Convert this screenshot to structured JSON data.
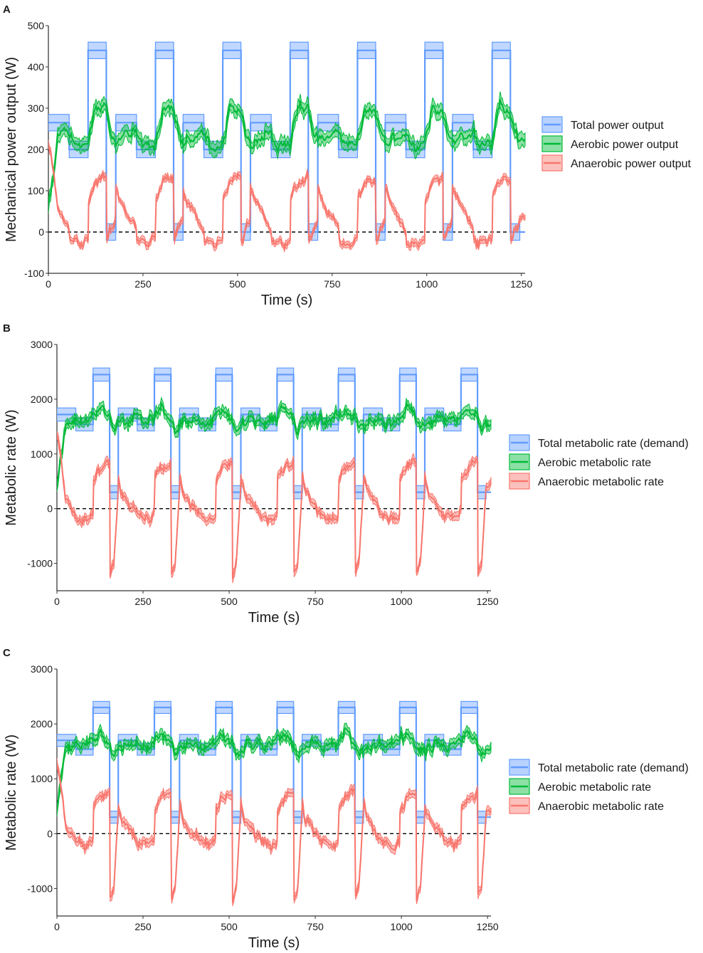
{
  "figure": {
    "panel_letters": [
      "A",
      "B",
      "C"
    ]
  },
  "colors": {
    "total": "#619CFF",
    "aerobic": "#00BA38",
    "anaerobic": "#F8766D",
    "zero_line": "#000000"
  },
  "chart_data": [
    {
      "panel": "A",
      "type": "line",
      "title": "",
      "xlabel": "Time (s)",
      "ylabel": "Mechanical power output (W)",
      "xlim": [
        0,
        1260
      ],
      "ylim": [
        -100,
        500
      ],
      "xticks": [
        0,
        250,
        500,
        750,
        1000,
        1250
      ],
      "yticks": [
        -100,
        0,
        100,
        200,
        300,
        400,
        500
      ],
      "reference_line": {
        "y": 0,
        "style": "dashed"
      },
      "legend_position": "right",
      "legend": [
        "Total power output",
        "Aerobic power output",
        "Anaerobic power output"
      ],
      "cycle": {
        "period_s": 178,
        "count": 7
      },
      "series": [
        {
          "name": "Total power output",
          "key": "total",
          "profile_s": [
            0,
            55,
            55,
            105,
            105,
            153,
            153,
            178
          ],
          "profile_y": [
            265,
            265,
            200,
            200,
            440,
            440,
            0,
            0
          ],
          "band_half_width": 20,
          "final_point": [
            1260,
            0
          ]
        },
        {
          "name": "Aerobic power output",
          "key": "aerobic",
          "start_point": [
            0,
            60
          ],
          "knots_s": [
            0,
            20,
            55,
            70,
            105,
            125,
            153,
            165,
            178
          ],
          "knots_y": [
            210,
            230,
            240,
            205,
            215,
            305,
            295,
            240,
            220
          ],
          "band_half_width": 20
        },
        {
          "name": "Anaerobic power output",
          "key": "anaerobic",
          "start_point": [
            0,
            220
          ],
          "knots_s": [
            0,
            10,
            55,
            56,
            90,
            105,
            106,
            125,
            153,
            154,
            178
          ],
          "knots_y": [
            110,
            80,
            5,
            -20,
            -30,
            -15,
            80,
            120,
            130,
            -20,
            30
          ],
          "band_half_width": 10
        }
      ]
    },
    {
      "panel": "B",
      "type": "line",
      "title": "",
      "xlabel": "Time (s)",
      "ylabel": "Metabolic rate (W)",
      "xlim": [
        0,
        1260
      ],
      "ylim": [
        -1500,
        3000
      ],
      "xticks": [
        0,
        250,
        500,
        750,
        1000,
        1250
      ],
      "yticks": [
        -1000,
        0,
        1000,
        2000,
        3000
      ],
      "reference_line": {
        "y": 0,
        "style": "dashed"
      },
      "legend_position": "right",
      "legend": [
        "Total metabolic rate (demand)",
        "Aerobic metabolic rate",
        "Anaerobic metabolic rate"
      ],
      "cycle": {
        "period_s": 178,
        "count": 7
      },
      "series": [
        {
          "name": "Total metabolic rate (demand)",
          "key": "total",
          "profile_s": [
            0,
            55,
            55,
            105,
            105,
            153,
            153,
            178
          ],
          "profile_y": [
            1720,
            1720,
            1540,
            1540,
            2450,
            2450,
            300,
            300
          ],
          "band_half_width": 120,
          "final_point": [
            1260,
            300
          ]
        },
        {
          "name": "Aerobic metabolic rate",
          "key": "aerobic",
          "start_point": [
            0,
            380
          ],
          "knots_s": [
            0,
            20,
            55,
            70,
            105,
            125,
            153,
            165,
            178
          ],
          "knots_y": [
            1550,
            1600,
            1650,
            1550,
            1700,
            1850,
            1650,
            1400,
            1550
          ],
          "band_half_width": 110
        },
        {
          "name": "Anaerobic metabolic rate",
          "key": "anaerobic",
          "start_point": [
            0,
            1400
          ],
          "knots_s": [
            0,
            10,
            55,
            56,
            90,
            105,
            106,
            125,
            153,
            154,
            165,
            178
          ],
          "knots_y": [
            600,
            300,
            -100,
            -150,
            -200,
            -100,
            550,
            750,
            850,
            -1200,
            -1000,
            400
          ],
          "band_half_width": 90
        }
      ]
    },
    {
      "panel": "C",
      "type": "line",
      "title": "",
      "xlabel": "Time (s)",
      "ylabel": "Metabolic rate (W)",
      "xlim": [
        0,
        1260
      ],
      "ylim": [
        -1500,
        3000
      ],
      "xticks": [
        0,
        250,
        500,
        750,
        1000,
        1250
      ],
      "yticks": [
        -1000,
        0,
        1000,
        2000,
        3000
      ],
      "reference_line": {
        "y": 0,
        "style": "dashed"
      },
      "legend_position": "right",
      "legend": [
        "Total metabolic rate (demand)",
        "Aerobic metabolic rate",
        "Anaerobic metabolic rate"
      ],
      "cycle": {
        "period_s": 178,
        "count": 7
      },
      "series": [
        {
          "name": "Total metabolic rate (demand)",
          "key": "total",
          "profile_s": [
            0,
            55,
            55,
            105,
            105,
            153,
            153,
            178
          ],
          "profile_y": [
            1700,
            1700,
            1540,
            1540,
            2300,
            2300,
            300,
            300
          ],
          "band_half_width": 110,
          "final_point": [
            1260,
            300
          ]
        },
        {
          "name": "Aerobic metabolic rate",
          "key": "aerobic",
          "start_point": [
            0,
            380
          ],
          "knots_s": [
            0,
            20,
            55,
            70,
            105,
            125,
            153,
            165,
            178
          ],
          "knots_y": [
            1550,
            1600,
            1650,
            1550,
            1700,
            1850,
            1650,
            1400,
            1550
          ],
          "band_half_width": 110
        },
        {
          "name": "Anaerobic metabolic rate",
          "key": "anaerobic",
          "start_point": [
            0,
            1300
          ],
          "knots_s": [
            0,
            10,
            55,
            56,
            90,
            105,
            106,
            125,
            153,
            154,
            165,
            178
          ],
          "knots_y": [
            550,
            250,
            -100,
            -150,
            -250,
            -150,
            450,
            650,
            750,
            -1200,
            -1000,
            400
          ],
          "band_half_width": 90
        }
      ]
    }
  ]
}
